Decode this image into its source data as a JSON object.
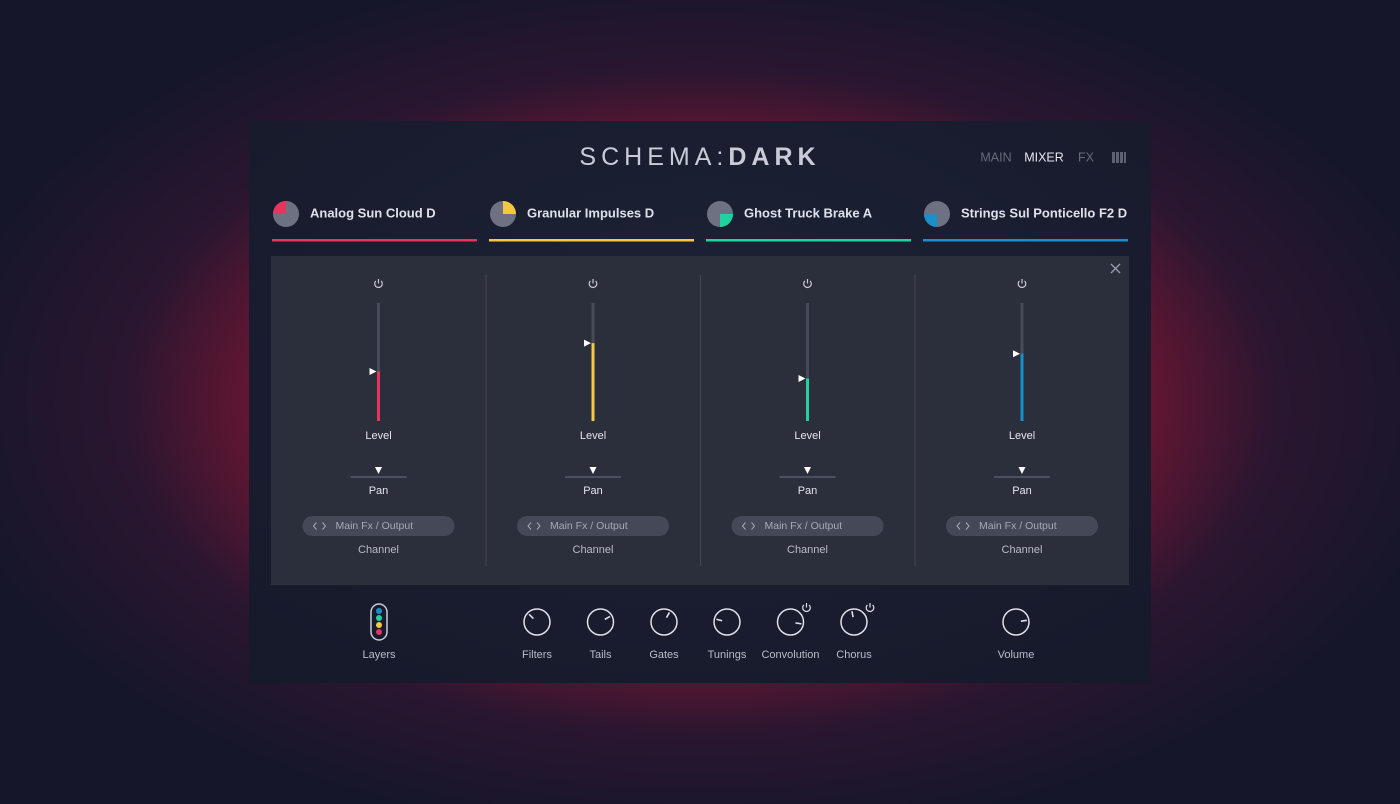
{
  "header": {
    "brand": {
      "light": "SCHEMA",
      "sep": ":",
      "bold": "DARK"
    },
    "nav": [
      "MAIN",
      "MIXER",
      "FX"
    ],
    "active_nav": 1
  },
  "tabs": [
    {
      "name": "Analog Sun Cloud D",
      "color": "#e8335e"
    },
    {
      "name": "Granular Impulses D",
      "color": "#f5c842"
    },
    {
      "name": "Ghost Truck Brake A",
      "color": "#1fd3a0"
    },
    {
      "name": "Strings Sul Ponticello F2 D",
      "color": "#1a8fc9"
    }
  ],
  "mixer": {
    "channels": [
      {
        "level": 0.42,
        "level_label": "Level",
        "pan_label": "Pan",
        "output": "Main Fx / Output",
        "channel_label": "Channel"
      },
      {
        "level": 0.66,
        "level_label": "Level",
        "pan_label": "Pan",
        "output": "Main Fx / Output",
        "channel_label": "Channel"
      },
      {
        "level": 0.36,
        "level_label": "Level",
        "pan_label": "Pan",
        "output": "Main Fx / Output",
        "channel_label": "Channel"
      },
      {
        "level": 0.57,
        "level_label": "Level",
        "pan_label": "Pan",
        "output": "Main Fx / Output",
        "channel_label": "Channel"
      }
    ]
  },
  "footer": {
    "layers": "Layers",
    "knobs": [
      {
        "label": "Filters",
        "value": 0.33,
        "power": false
      },
      {
        "label": "Tails",
        "value": 0.72,
        "power": false
      },
      {
        "label": "Gates",
        "value": 0.61,
        "power": false
      },
      {
        "label": "Tunings",
        "value": 0.22,
        "power": false
      },
      {
        "label": "Convolution",
        "value": 0.87,
        "power": true
      },
      {
        "label": "Chorus",
        "value": 0.46,
        "power": true
      }
    ],
    "volume": {
      "label": "Volume",
      "value": 0.8
    }
  }
}
